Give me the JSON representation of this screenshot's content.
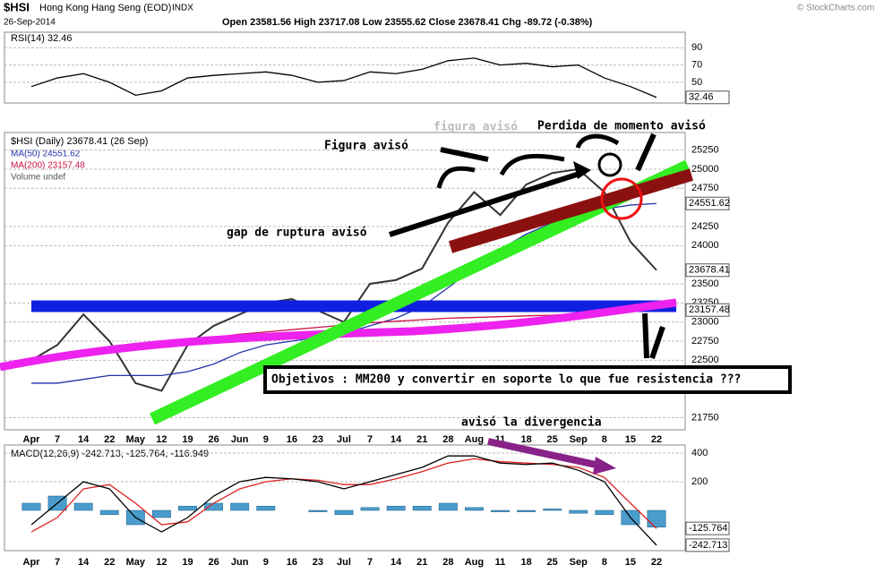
{
  "header": {
    "symbol": "$HSI",
    "name": "Hong Kong Hang Seng (EOD)",
    "exchange": "INDX",
    "date": "26-Sep-2014",
    "quote": "Open 23581.56  High 23717.08  Low 23555.62  Close 23678.41  Chg -89.72 (-0.38%)",
    "brand": "© StockCharts.com"
  },
  "annotations": {
    "figura_faded": "figura avisó",
    "figura": "Figura avisó",
    "perdida": "Perdida de momento avisó",
    "gap": "gap de ruptura avisó",
    "objetivos": "Objetivos : MM200 y convertir en soporte lo que fue resistencia ???",
    "divergencia": "avisó la divergencia"
  },
  "chart_data": [
    {
      "type": "line",
      "legend": "RSI(14) 32.46",
      "categories": [
        "Apr",
        "7",
        "14",
        "22",
        "May",
        "12",
        "19",
        "26",
        "Jun",
        "9",
        "16",
        "23",
        "Jul",
        "7",
        "14",
        "21",
        "28",
        "Aug",
        "11",
        "18",
        "25",
        "Sep",
        "8",
        "15",
        "22"
      ],
      "ylim": [
        26,
        108
      ],
      "yticks": [
        50,
        70,
        90
      ],
      "grid": true,
      "end_labels": [
        32.46
      ],
      "series": [
        {
          "name": "RSI(14)",
          "type": "line",
          "color": "#000000",
          "values": [
            45,
            55,
            60,
            50,
            35,
            40,
            55,
            58,
            60,
            62,
            58,
            50,
            52,
            62,
            60,
            65,
            75,
            78,
            70,
            72,
            68,
            70,
            55,
            45,
            32.46
          ]
        }
      ]
    },
    {
      "type": "line",
      "legend": [
        "$HSI (Daily) 23678.41 (26 Sep)",
        "MA(50) 24551.62",
        "MA(200) 23157.48",
        "Volume undef"
      ],
      "categories": [
        "Apr",
        "7",
        "14",
        "22",
        "May",
        "12",
        "19",
        "26",
        "Jun",
        "9",
        "16",
        "23",
        "Jul",
        "7",
        "14",
        "21",
        "28",
        "Aug",
        "11",
        "18",
        "25",
        "Sep",
        "8",
        "15",
        "22"
      ],
      "ylim": [
        21590,
        25480
      ],
      "yticks": [
        21750,
        22500,
        22750,
        23000,
        23250,
        23500,
        24000,
        24250,
        24750,
        25000,
        25250
      ],
      "grid": true,
      "end_labels": [
        24551.62,
        23678.41,
        23157.48
      ],
      "series": [
        {
          "name": "$HSI",
          "type": "line",
          "color": "#333333",
          "values": [
            22500,
            22700,
            23100,
            22750,
            22200,
            22100,
            22700,
            22950,
            23100,
            23250,
            23300,
            23150,
            23000,
            23500,
            23550,
            23700,
            24300,
            24700,
            24400,
            24800,
            24950,
            25000,
            24700,
            24050,
            23678.41
          ]
        },
        {
          "name": "MA(50)",
          "type": "line",
          "color": "#2233aa",
          "values": [
            22200,
            22200,
            22250,
            22300,
            22300,
            22300,
            22350,
            22450,
            22600,
            22700,
            22750,
            22800,
            22850,
            22950,
            23050,
            23200,
            23450,
            23700,
            23950,
            24150,
            24300,
            24400,
            24480,
            24530,
            24551.62
          ]
        },
        {
          "name": "MA(200)",
          "type": "line",
          "color": "#cc1144",
          "values": [
            22480,
            22530,
            22580,
            22630,
            22680,
            22720,
            22760,
            22800,
            22840,
            22870,
            22900,
            22930,
            22960,
            22990,
            23010,
            23030,
            23050,
            23060,
            23070,
            23080,
            23090,
            23110,
            23130,
            23145,
            23157.48
          ]
        }
      ]
    },
    {
      "type": "line",
      "legend": "MACD(12,26,9) -242.713, -125.764, -116.949",
      "categories": [
        "Apr",
        "7",
        "14",
        "22",
        "May",
        "12",
        "19",
        "26",
        "Jun",
        "9",
        "16",
        "23",
        "Jul",
        "7",
        "14",
        "21",
        "28",
        "Aug",
        "11",
        "18",
        "25",
        "Sep",
        "8",
        "15",
        "22"
      ],
      "ylim": [
        -281,
        456
      ],
      "yticks": [
        200,
        400
      ],
      "grid": true,
      "end_labels": [
        -125.764,
        -242.713
      ],
      "series": [
        {
          "name": "Histogram",
          "type": "bar",
          "color": "#4a9ccc",
          "values": [
            50,
            100,
            50,
            -30,
            -100,
            -50,
            30,
            50,
            50,
            30,
            0,
            -10,
            -30,
            20,
            30,
            30,
            50,
            20,
            -10,
            -10,
            10,
            -20,
            -30,
            -100,
            -116.949
          ]
        },
        {
          "name": "Signal",
          "type": "line",
          "color": "#dd2222",
          "values": [
            -150,
            -50,
            150,
            180,
            50,
            -100,
            -80,
            50,
            150,
            200,
            220,
            210,
            180,
            180,
            220,
            270,
            330,
            360,
            340,
            330,
            320,
            300,
            230,
            50,
            -125.764
          ]
        },
        {
          "name": "MACD",
          "type": "line",
          "color": "#000000",
          "values": [
            -100,
            50,
            200,
            150,
            -50,
            -150,
            -50,
            100,
            200,
            230,
            220,
            200,
            150,
            200,
            250,
            300,
            380,
            380,
            330,
            320,
            330,
            280,
            200,
            -50,
            -242.713
          ]
        }
      ]
    }
  ]
}
